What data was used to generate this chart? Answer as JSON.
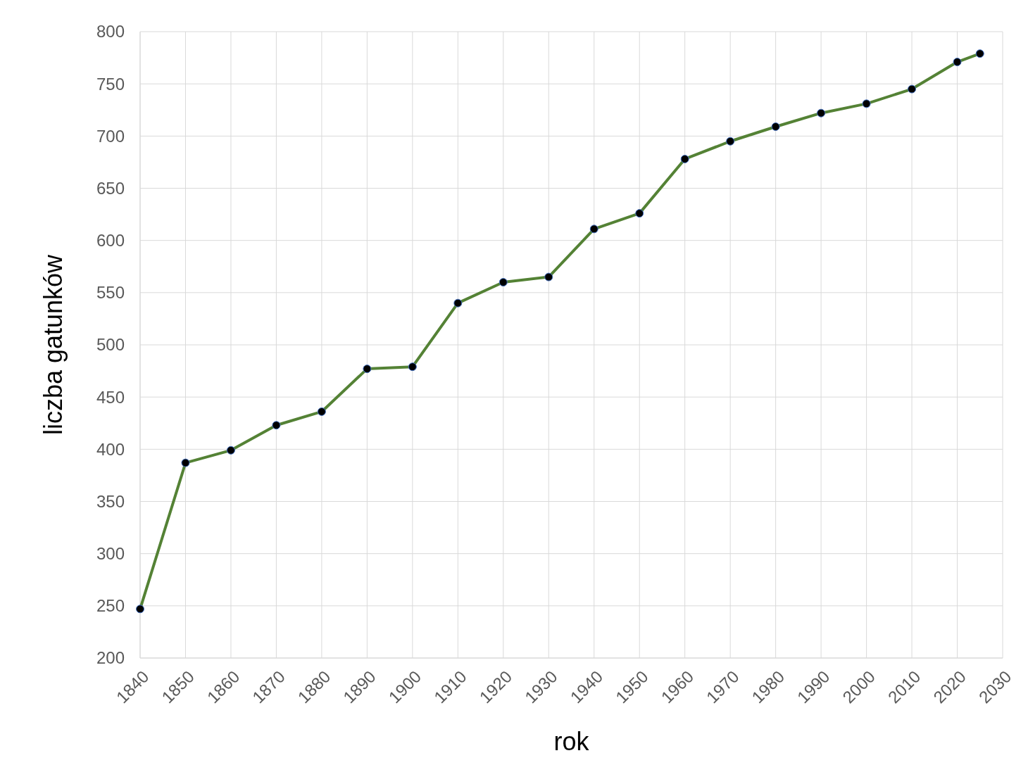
{
  "chart_data": {
    "type": "line",
    "xlabel": "rok",
    "ylabel": "liczba gatunków",
    "x": [
      1840,
      1850,
      1860,
      1870,
      1880,
      1890,
      1900,
      1910,
      1920,
      1930,
      1940,
      1950,
      1960,
      1970,
      1980,
      1990,
      2000,
      2010,
      2020,
      2025
    ],
    "series": [
      {
        "color": "#548235",
        "values": [
          247,
          387,
          399,
          423,
          436,
          477,
          479,
          540,
          560,
          565,
          611,
          626,
          678,
          695,
          709,
          722,
          731,
          745,
          771,
          779
        ]
      }
    ],
    "xlim": [
      1840,
      2030
    ],
    "xticks": [
      1840,
      1850,
      1860,
      1870,
      1880,
      1890,
      1900,
      1910,
      1920,
      1930,
      1940,
      1950,
      1960,
      1970,
      1980,
      1990,
      2000,
      2010,
      2020,
      2030
    ],
    "ylim": [
      200,
      800
    ],
    "yticks": [
      200,
      250,
      300,
      350,
      400,
      450,
      500,
      550,
      600,
      650,
      700,
      750,
      800
    ],
    "grid": true,
    "marker": "circle",
    "line_style": "solid"
  }
}
